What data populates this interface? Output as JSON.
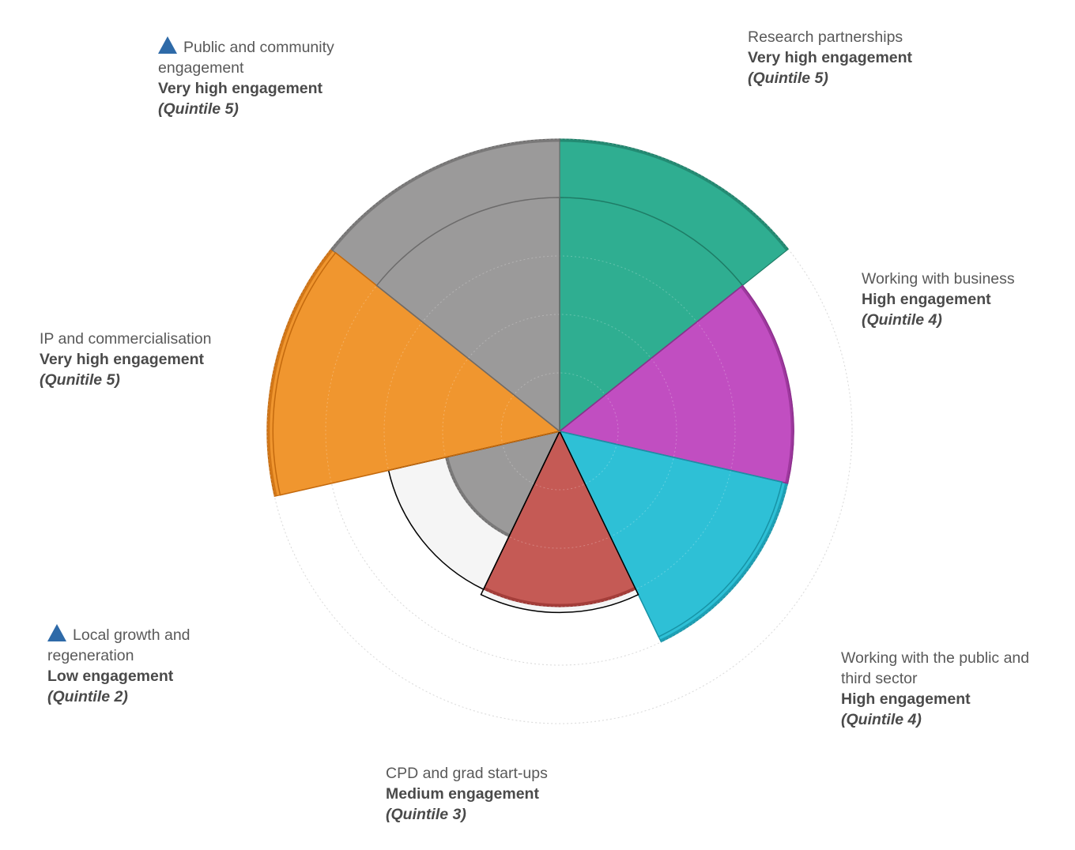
{
  "chart_data": {
    "type": "polar-area",
    "max_quintile": 5,
    "segments": [
      {
        "name": "Research partnerships",
        "level": "Very high engagement",
        "quintile_label": "(Quintile 5)",
        "quintile": 5,
        "benchmark_quintile": 4,
        "color": "#2fae91",
        "edge": "#1e7c66",
        "flag": false
      },
      {
        "name": "Working with business",
        "level": "High engagement",
        "quintile_label": "(Quintile 4)",
        "quintile": 4,
        "benchmark_quintile": 4,
        "color": "#c14ec1",
        "edge": "#8e2f8e",
        "flag": false
      },
      {
        "name": "Working with the public and third sector",
        "level": "High engagement",
        "quintile_label": "(Quintile 4)",
        "quintile": 4,
        "benchmark_quintile": 3.9,
        "color": "#2ec0d6",
        "edge": "#1793a6",
        "flag": false
      },
      {
        "name": "CPD and grad start-ups",
        "level": "Medium engagement",
        "quintile_label": "(Quintile 3)",
        "quintile": 3,
        "benchmark_quintile": 3.1,
        "color": "#c55a55",
        "edge": "#96302d",
        "flag": false
      },
      {
        "name": "Local growth and regeneration",
        "level": "Low engagement",
        "quintile_label": "(Quintile 2)",
        "quintile": 2,
        "benchmark_quintile": 3,
        "color": "#9b9a9a",
        "edge": "#6c6b6b",
        "flag": true
      },
      {
        "name": "IP and commercialisation",
        "level": "Very high engagement",
        "quintile_label": "(Qunitile 5)",
        "quintile": 5,
        "benchmark_quintile": 4.9,
        "color": "#f0962f",
        "edge": "#c46a0e",
        "flag": false
      },
      {
        "name": "Public and community engagement",
        "level": "Very high engagement",
        "quintile_label": "(Quintile 5)",
        "quintile": 5,
        "benchmark_quintile": 4,
        "color": "#9b9a9a",
        "edge": "#6c6b6b",
        "flag": true
      }
    ],
    "notes": "Petal length shows engagement quintile (1-5); thin outline shows benchmark/cluster quintile; blue triangle marks highlighted perspectives."
  },
  "labels": {
    "research": {
      "name": "Research partnerships",
      "level": "Very high engagement",
      "quintile": "(Quintile 5)"
    },
    "business": {
      "name": "Working with business",
      "level": "High engagement",
      "quintile": "(Quintile 4)"
    },
    "public_third": {
      "name": "Working with the public and third sector",
      "level": "High engagement",
      "quintile": "(Quintile 4)"
    },
    "cpd": {
      "name": "CPD and grad start-ups",
      "level": "Medium engagement",
      "quintile": "(Quintile 3)"
    },
    "local": {
      "name": "Local growth and regeneration",
      "level": "Low engagement",
      "quintile": "(Quintile 2)"
    },
    "ip": {
      "name": "IP and commercialisation",
      "level": "Very high engagement",
      "quintile": "(Qunitile 5)"
    },
    "public_comm": {
      "name": "Public and community engagement",
      "level": "Very high engagement",
      "quintile": "(Quintile 5)"
    }
  },
  "flag_color": "#2e6aa8"
}
